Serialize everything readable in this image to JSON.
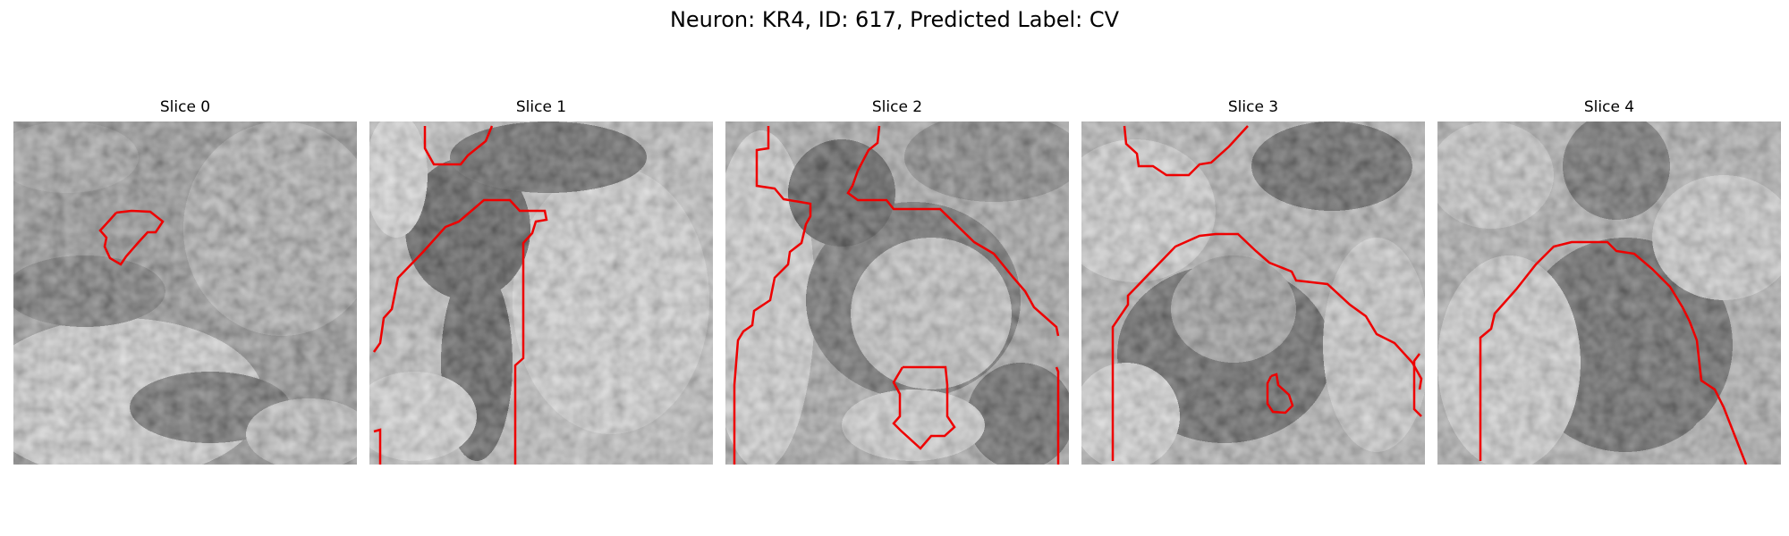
{
  "figure": {
    "title": "Neuron: KR4, ID: 617, Predicted Label: CV"
  },
  "colors": {
    "contour": "#ee0000",
    "background": "#ffffff"
  },
  "slices": [
    {
      "title": "Slice 0"
    },
    {
      "title": "Slice 1"
    },
    {
      "title": "Slice 2"
    },
    {
      "title": "Slice 3"
    },
    {
      "title": "Slice 4"
    }
  ]
}
